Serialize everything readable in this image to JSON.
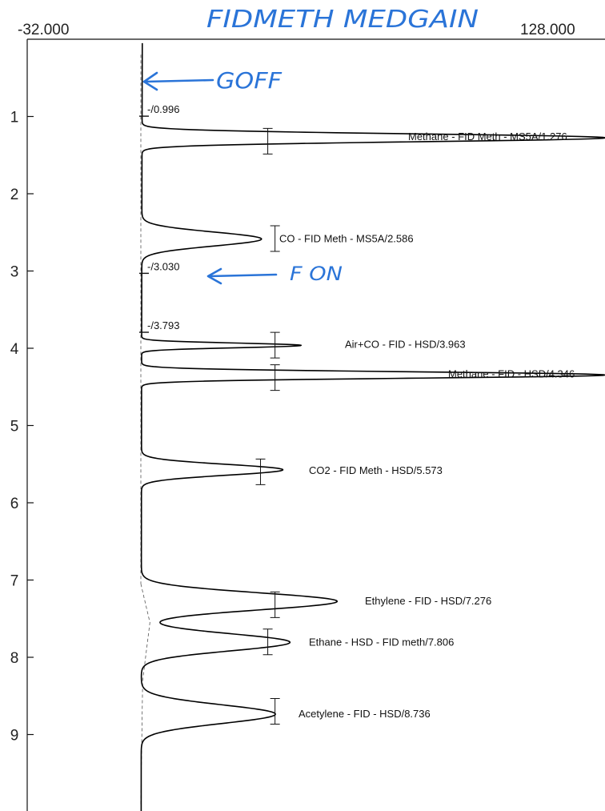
{
  "header": {
    "x_min_label": "-32.000",
    "x_max_label": "128.000",
    "title_handwritten": "FIDMETH MEDGAIN"
  },
  "annotations": {
    "goff": "GOFF",
    "fon": "F ON",
    "ink_color": "#2a74d8"
  },
  "chart_data": {
    "type": "line",
    "orientation": "vertical-time",
    "xlim": [
      -32,
      128
    ],
    "ylim": [
      0,
      10
    ],
    "y_ticks": [
      1,
      2,
      3,
      4,
      5,
      6,
      7,
      8,
      9
    ],
    "baseline_x": 0,
    "peaks": [
      {
        "label": "Methane - FID Meth - MS5A/1.276",
        "rt": 1.276,
        "height": 128,
        "sigma": 0.05
      },
      {
        "label": "CO - FID Meth - MS5A/2.586",
        "rt": 2.586,
        "height": 33,
        "sigma": 0.09
      },
      {
        "label": "Air+CO - FID - HSD/3.963",
        "rt": 3.963,
        "height": 44,
        "sigma": 0.03
      },
      {
        "label": "Methane - FID - HSD/4.346",
        "rt": 4.346,
        "height": 128,
        "sigma": 0.04
      },
      {
        "label": "CO2 - FID Meth - HSD/5.573",
        "rt": 5.573,
        "height": 39,
        "sigma": 0.07
      },
      {
        "label": "Ethylene - FID - HSD/7.276",
        "rt": 7.276,
        "height": 54,
        "sigma": 0.11
      },
      {
        "label": "Ethane - HSD - FID meth/7.806",
        "rt": 7.806,
        "height": 41,
        "sigma": 0.11
      },
      {
        "label": "Acetylene - FID - HSD/8.736",
        "rt": 8.736,
        "height": 37,
        "sigma": 0.12
      }
    ],
    "events": [
      {
        "label": "-/0.996",
        "t": 0.996
      },
      {
        "label": "-/3.030",
        "t": 3.03
      },
      {
        "label": "-/3.793",
        "t": 3.793
      }
    ],
    "error_bars": [
      {
        "t": 1.32,
        "x": 35
      },
      {
        "t": 2.58,
        "x": 37
      },
      {
        "t": 3.96,
        "x": 37
      },
      {
        "t": 4.38,
        "x": 37
      },
      {
        "t": 5.6,
        "x": 33
      },
      {
        "t": 7.32,
        "x": 37
      },
      {
        "t": 7.8,
        "x": 35
      },
      {
        "t": 8.7,
        "x": 37
      }
    ]
  }
}
